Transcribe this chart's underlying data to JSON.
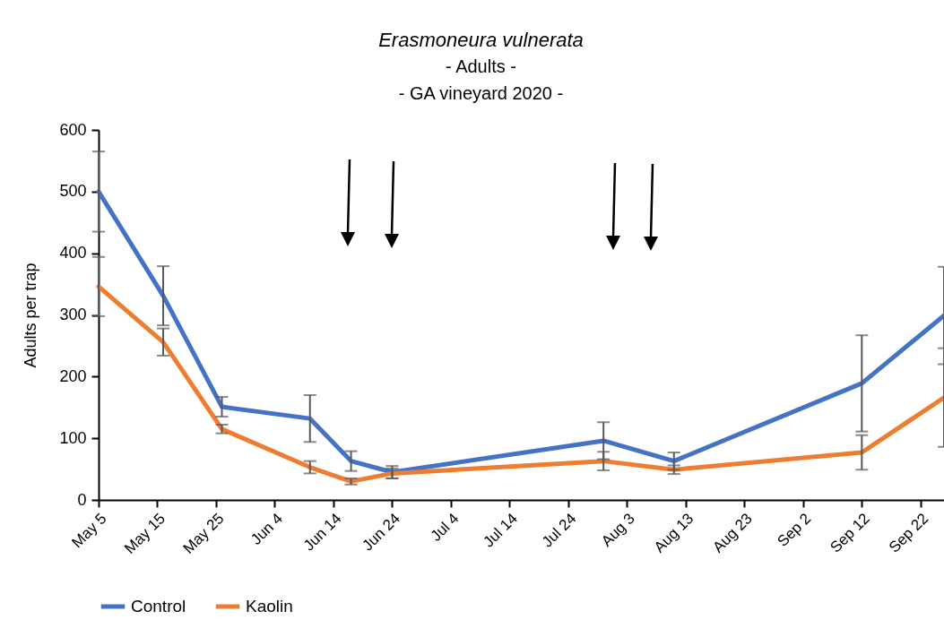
{
  "chart_data": {
    "type": "line",
    "title": "Erasmoneura vulnerata",
    "subtitle": "- Adults -\n- GA vineyard 2020 -",
    "ylabel": "Adults per trap",
    "x": [
      "2020-05-05",
      "2020-05-16",
      "2020-05-26",
      "2020-06-10",
      "2020-06-17",
      "2020-06-24",
      "2020-07-30",
      "2020-08-11",
      "2020-09-12",
      "2020-09-26"
    ],
    "series": [
      {
        "name": "Control",
        "color": "#4472c4",
        "values": [
          500,
          331,
          151,
          132,
          63,
          45,
          96,
          63,
          189,
          299
        ],
        "errors": [
          65,
          48,
          16,
          38,
          16,
          10,
          30,
          14,
          78,
          79
        ]
      },
      {
        "name": "Kaolin",
        "color": "#ed7d31",
        "values": [
          346,
          256,
          115,
          53,
          30,
          43,
          63,
          49,
          77,
          166
        ],
        "errors": [
          48,
          22,
          7,
          10,
          5,
          8,
          15,
          7,
          28,
          80
        ]
      }
    ],
    "xlim": [
      "2020-05-05",
      "2020-09-26"
    ],
    "xticks": [
      {
        "value": "2020-05-05",
        "label": "May 5"
      },
      {
        "value": "2020-05-15",
        "label": "May 15"
      },
      {
        "value": "2020-05-25",
        "label": "May 25"
      },
      {
        "value": "2020-06-04",
        "label": "Jun 4"
      },
      {
        "value": "2020-06-14",
        "label": "Jun 14"
      },
      {
        "value": "2020-06-24",
        "label": "Jun 24"
      },
      {
        "value": "2020-07-04",
        "label": "Jul 4"
      },
      {
        "value": "2020-07-14",
        "label": "Jul 14"
      },
      {
        "value": "2020-07-24",
        "label": "Jul 24"
      },
      {
        "value": "2020-08-03",
        "label": "Aug 3"
      },
      {
        "value": "2020-08-13",
        "label": "Aug 13"
      },
      {
        "value": "2020-08-23",
        "label": "Aug 23"
      },
      {
        "value": "2020-09-02",
        "label": "Sep 2"
      },
      {
        "value": "2020-09-12",
        "label": "Sep 12"
      },
      {
        "value": "2020-09-22",
        "label": "Sep 22"
      }
    ],
    "ylim": [
      0,
      600
    ],
    "yticks": [
      0,
      100,
      200,
      300,
      400,
      500,
      600
    ],
    "grid": false,
    "legend": "bottom",
    "marker": "none",
    "line_style": "solid"
  }
}
